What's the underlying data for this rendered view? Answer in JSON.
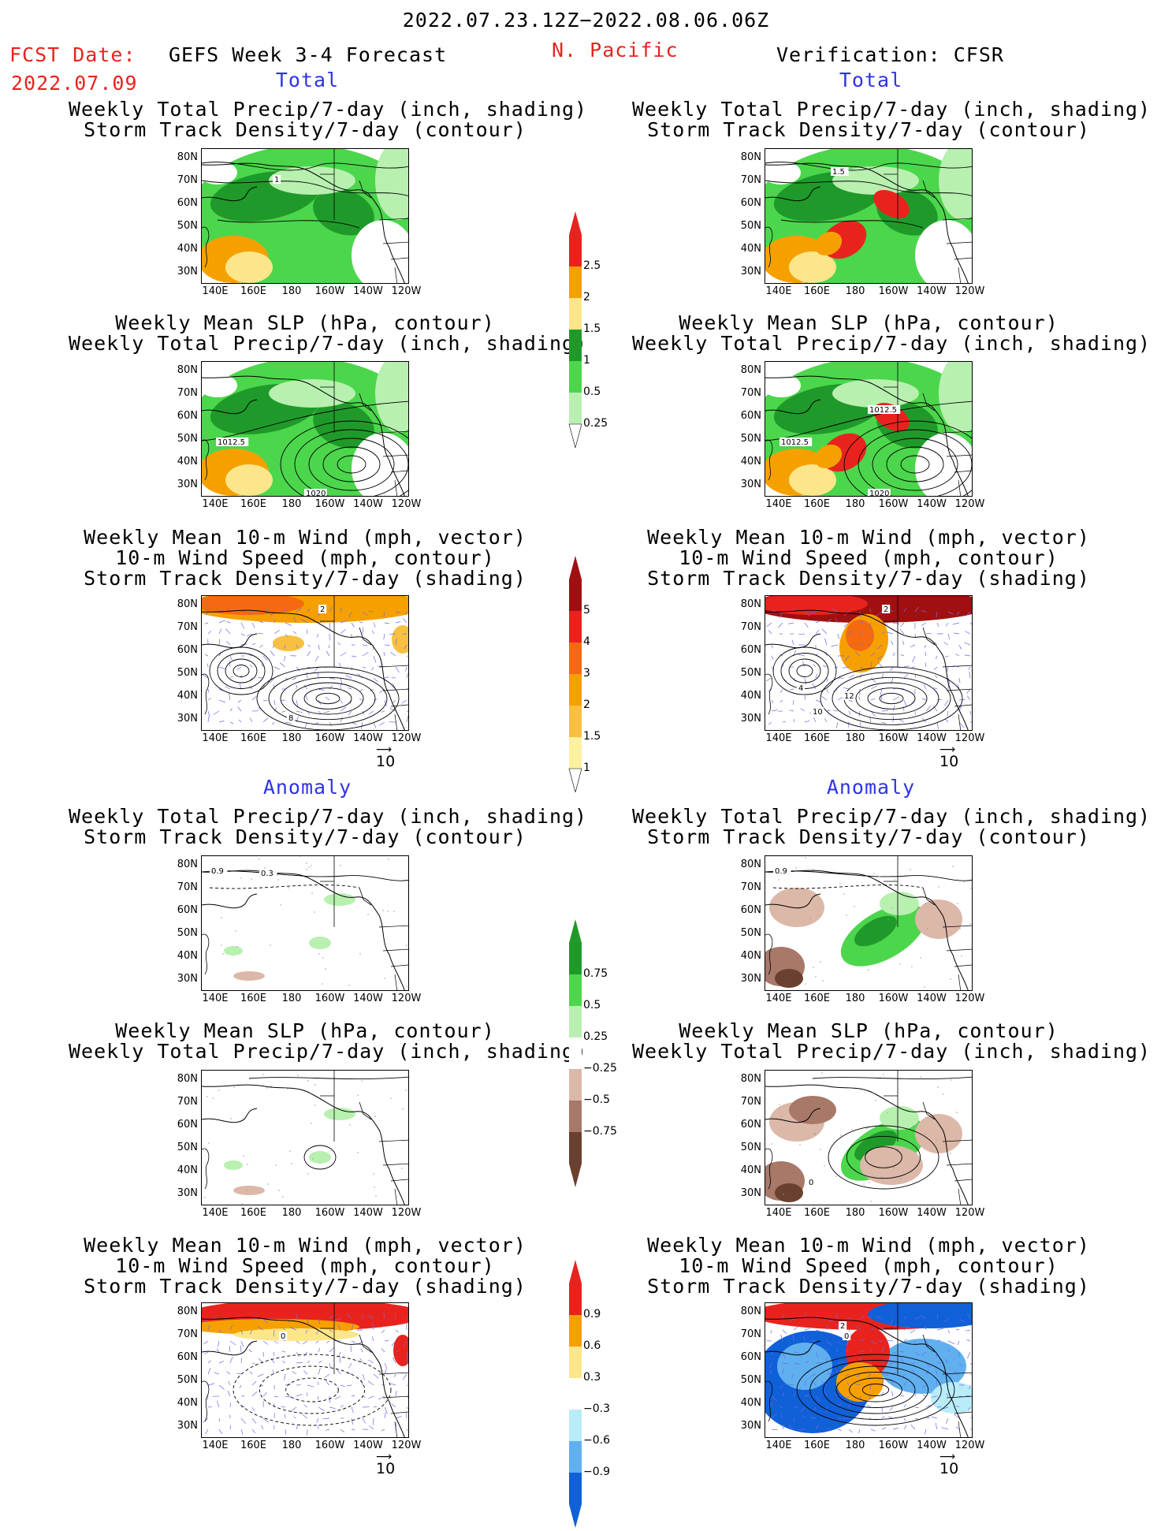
{
  "header": {
    "date_range": "2022.07.23.12Z−2022.08.06.06Z",
    "fcst_label": "FCST Date:",
    "fcst_date": "2022.07.09",
    "forecast_title": "GEFS Week 3-4 Forecast",
    "region": "N. Pacific",
    "verification": "Verification: CFSR"
  },
  "sections": {
    "total": "Total",
    "anomaly": "Anomaly"
  },
  "titles": {
    "precip_track": [
      "Weekly Total Precip/7-day (inch, shading)",
      "Storm Track Density/7-day (contour)"
    ],
    "slp_precip": [
      "Weekly Mean SLP (hPa, contour)",
      "Weekly Total Precip/7-day (inch, shading)"
    ],
    "wind": [
      "Weekly Mean 10-m Wind (mph, vector)",
      "10-m Wind Speed (mph, contour)",
      "Storm Track Density/7-day (shading)"
    ]
  },
  "axes": {
    "lat": [
      "80N",
      "70N",
      "60N",
      "50N",
      "40N",
      "30N"
    ],
    "lon": [
      "140E",
      "160E",
      "180",
      "160W",
      "140W",
      "120W"
    ]
  },
  "vector_ref": "10",
  "contour_labels": {
    "fc_precip": "1",
    "ob_precip": "1.5",
    "slp_1012": "1012.5",
    "slp_1020": "1020",
    "ob_slp_top": "1012.5",
    "anom_09": "0.9",
    "anom_03": "0.3",
    "anom_0": "0",
    "wind_2": "2",
    "wind_4": "4",
    "wind_8": "8",
    "wind_10": "10",
    "wind_12": "12"
  },
  "colorbars": {
    "precip_total": {
      "labels": [
        "2.5",
        "2",
        "1.5",
        "1",
        "0.5",
        "0.25"
      ],
      "colors": [
        "#e8231e",
        "#f6a000",
        "#fde68a",
        "#1f9a2a",
        "#4cd64c",
        "#b8f0b0"
      ]
    },
    "storm_total": {
      "labels": [
        "5",
        "4",
        "3",
        "2",
        "1.5",
        "1"
      ],
      "colors": [
        "#a01010",
        "#e8231e",
        "#f56a10",
        "#f6a000",
        "#f8c040",
        "#fdf0a0"
      ]
    },
    "precip_anom": {
      "labels": [
        "0.75",
        "0.5",
        "0.25",
        "−0.25",
        "−0.5",
        "−0.75"
      ],
      "colors": [
        "#1f9a2a",
        "#4cd64c",
        "#b8f0b0",
        "#ffffff",
        "#dcb8a8",
        "#a87868",
        "#6a4030"
      ]
    },
    "storm_anom": {
      "labels": [
        "0.9",
        "0.6",
        "0.3",
        "−0.3",
        "−0.6",
        "−0.9"
      ],
      "colors": [
        "#e8231e",
        "#f6a000",
        "#fde68a",
        "#ffffff",
        "#b8ecf8",
        "#60b0f0",
        "#1060d8"
      ]
    }
  }
}
